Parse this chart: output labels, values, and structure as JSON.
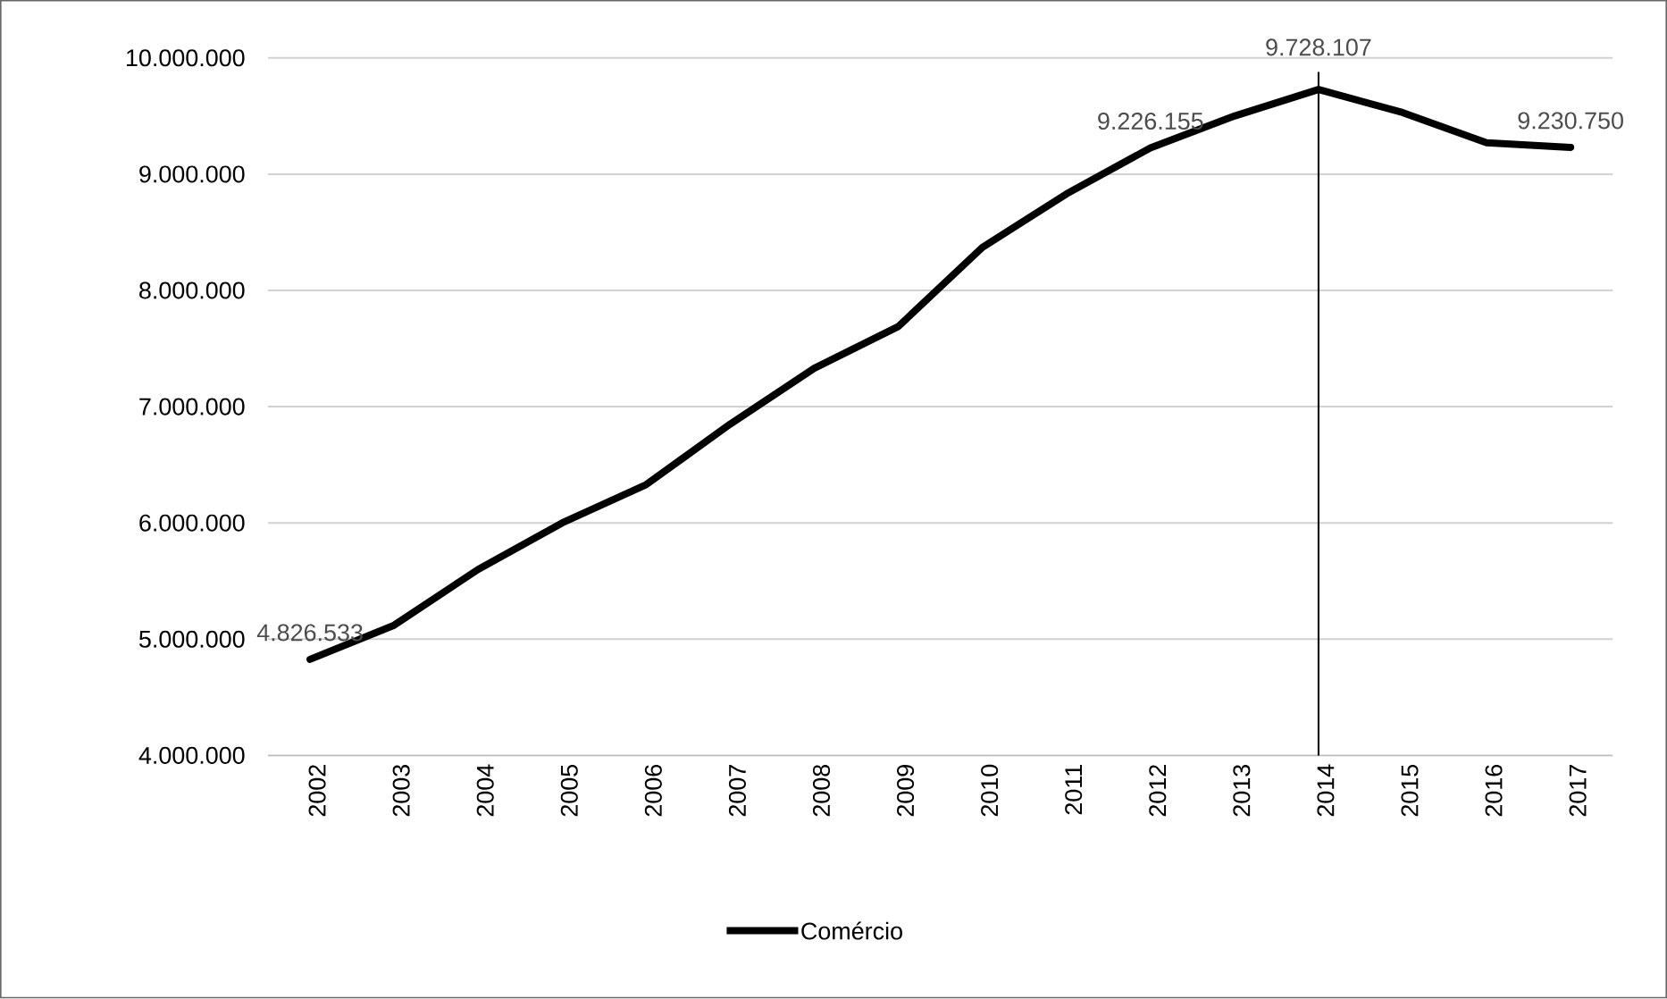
{
  "chart_data": {
    "type": "line",
    "categories": [
      "2002",
      "2003",
      "2004",
      "2005",
      "2006",
      "2007",
      "2008",
      "2009",
      "2010",
      "2011",
      "2012",
      "2013",
      "2014",
      "2015",
      "2016",
      "2017"
    ],
    "series": [
      {
        "name": "Comércio",
        "color": "#000000",
        "values": [
          4826533,
          5120000,
          5600000,
          6000000,
          6330000,
          6850000,
          7330000,
          7690000,
          8370000,
          8830000,
          9226155,
          9500000,
          9728107,
          9530000,
          9270000,
          9230750
        ],
        "value_labels": [
          "4.826.533",
          null,
          null,
          null,
          null,
          null,
          null,
          null,
          null,
          null,
          "9.226.155",
          null,
          "9.728.107",
          null,
          null,
          "9.230.750"
        ]
      }
    ],
    "ylim": [
      4000000,
      10000000
    ],
    "yticks": [
      {
        "value": 4000000,
        "label": "4.000.000"
      },
      {
        "value": 5000000,
        "label": "5.000.000"
      },
      {
        "value": 6000000,
        "label": "6.000.000"
      },
      {
        "value": 7000000,
        "label": "7.000.000"
      },
      {
        "value": 8000000,
        "label": "8.000.000"
      },
      {
        "value": 9000000,
        "label": "9.000.000"
      },
      {
        "value": 10000000,
        "label": "10.000.000"
      }
    ],
    "grid": "y",
    "legend": "bottom",
    "marker": "none",
    "line_style": "solid",
    "ref_lines": [
      {
        "axis": "x",
        "value": "2014",
        "color": "#000000"
      }
    ]
  }
}
